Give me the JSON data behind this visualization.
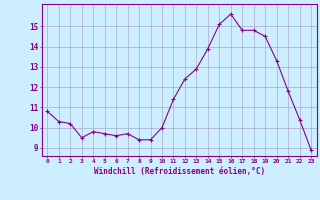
{
  "x": [
    0,
    1,
    2,
    3,
    4,
    5,
    6,
    7,
    8,
    9,
    10,
    11,
    12,
    13,
    14,
    15,
    16,
    17,
    18,
    19,
    20,
    21,
    22,
    23
  ],
  "y": [
    10.8,
    10.3,
    10.2,
    9.5,
    9.8,
    9.7,
    9.6,
    9.7,
    9.4,
    9.4,
    10.0,
    11.4,
    12.4,
    12.9,
    13.9,
    15.1,
    15.6,
    14.8,
    14.8,
    14.5,
    13.3,
    11.8,
    10.4,
    8.9
  ],
  "line_color": "#880088",
  "marker": "+",
  "bg_color": "#cceeff",
  "grid_color": "#aaaacc",
  "xlabel": "Windchill (Refroidissement éolien,°C)",
  "ylabel_ticks": [
    9,
    10,
    11,
    12,
    13,
    14,
    15
  ],
  "xtick_labels": [
    "0",
    "1",
    "2",
    "3",
    "4",
    "5",
    "6",
    "7",
    "8",
    "9",
    "10",
    "11",
    "12",
    "13",
    "14",
    "15",
    "16",
    "17",
    "18",
    "19",
    "20",
    "21",
    "22",
    "23"
  ],
  "ylim": [
    8.6,
    16.1
  ],
  "xlim": [
    -0.5,
    23.5
  ],
  "tick_color": "#880088",
  "label_color": "#880088",
  "spine_color": "#880088"
}
